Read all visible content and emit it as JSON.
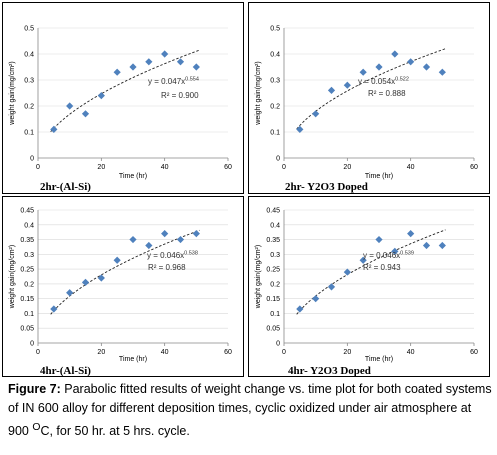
{
  "chart_data": [
    {
      "type": "scatter",
      "panel_label": "2hr-(Al-Si)",
      "xlabel": "Time (hr)",
      "ylabel": "weight gain(mg/cm²)",
      "xlim": [
        0,
        60
      ],
      "xticks": [
        "0",
        "20",
        "40",
        "60"
      ],
      "ylim": [
        0,
        0.5
      ],
      "yticks": [
        "0",
        "0.1",
        "0.2",
        "0.3",
        "0.4",
        "0.5"
      ],
      "grid": "horizontal",
      "points": [
        [
          5,
          0.11
        ],
        [
          10,
          0.2
        ],
        [
          15,
          0.17
        ],
        [
          20,
          0.24
        ],
        [
          25,
          0.33
        ],
        [
          30,
          0.35
        ],
        [
          35,
          0.37
        ],
        [
          40,
          0.4
        ],
        [
          45,
          0.37
        ],
        [
          50,
          0.35
        ]
      ],
      "trendline": {
        "type": "power",
        "a": 0.047,
        "b": 0.554
      },
      "equation": {
        "prefix": "y = 0.047x",
        "exponent": "0.554"
      },
      "r2": "R² = 0.900"
    },
    {
      "type": "scatter",
      "panel_label": "2hr- Y2O3 Doped",
      "xlabel": "Time (hr)",
      "ylabel": "weight gain(mg/cm²)",
      "xlim": [
        0,
        60
      ],
      "xticks": [
        "0",
        "20",
        "40",
        "60"
      ],
      "ylim": [
        0,
        0.5
      ],
      "yticks": [
        "0",
        "0.1",
        "0.2",
        "0.3",
        "0.4",
        "0.5"
      ],
      "grid": "horizontal",
      "points": [
        [
          5,
          0.11
        ],
        [
          10,
          0.17
        ],
        [
          15,
          0.26
        ],
        [
          20,
          0.28
        ],
        [
          25,
          0.33
        ],
        [
          30,
          0.35
        ],
        [
          35,
          0.4
        ],
        [
          40,
          0.37
        ],
        [
          45,
          0.35
        ],
        [
          50,
          0.33
        ]
      ],
      "trendline": {
        "type": "power",
        "a": 0.054,
        "b": 0.522
      },
      "equation": {
        "prefix": "y = 0.054x",
        "exponent": "0.522"
      },
      "r2": "R² = 0.888"
    },
    {
      "type": "scatter",
      "panel_label": "4hr-(Al-Si)",
      "xlabel": "Time (hr)",
      "ylabel": "weight gain(mg/cm²)",
      "xlim": [
        0,
        60
      ],
      "xticks": [
        "0",
        "20",
        "40",
        "60"
      ],
      "ylim": [
        0,
        0.45
      ],
      "yticks": [
        "0",
        "0.05",
        "0.1",
        "0.15",
        "0.2",
        "0.25",
        "0.3",
        "0.35",
        "0.4",
        "0.45"
      ],
      "grid": "horizontal",
      "points": [
        [
          5,
          0.115
        ],
        [
          10,
          0.17
        ],
        [
          15,
          0.205
        ],
        [
          20,
          0.22
        ],
        [
          25,
          0.28
        ],
        [
          30,
          0.35
        ],
        [
          35,
          0.33
        ],
        [
          40,
          0.37
        ],
        [
          45,
          0.35
        ],
        [
          50,
          0.37
        ]
      ],
      "trendline": {
        "type": "power",
        "a": 0.046,
        "b": 0.538
      },
      "equation": {
        "prefix": "y = 0.046x",
        "exponent": "0.538"
      },
      "r2": "R² = 0.968"
    },
    {
      "type": "scatter",
      "panel_label": "4hr- Y2O3 Doped",
      "xlabel": "Time (hr)",
      "ylabel": "weight gain(mg/cm²)",
      "xlim": [
        0,
        60
      ],
      "xticks": [
        "0",
        "20",
        "40",
        "60"
      ],
      "ylim": [
        0,
        0.45
      ],
      "yticks": [
        "0",
        "0.05",
        "0.1",
        "0.15",
        "0.2",
        "0.25",
        "0.3",
        "0.35",
        "0.4",
        "0.45"
      ],
      "grid": "horizontal",
      "points": [
        [
          5,
          0.115
        ],
        [
          10,
          0.15
        ],
        [
          15,
          0.19
        ],
        [
          20,
          0.24
        ],
        [
          25,
          0.28
        ],
        [
          30,
          0.35
        ],
        [
          35,
          0.31
        ],
        [
          40,
          0.37
        ],
        [
          45,
          0.33
        ],
        [
          50,
          0.33
        ]
      ],
      "trendline": {
        "type": "power",
        "a": 0.046,
        "b": 0.539
      },
      "equation": {
        "prefix": "y = 0.046x",
        "exponent": "0.539"
      },
      "r2": "R² = 0.943"
    }
  ],
  "caption": {
    "figure_label": "Figure 7:",
    "text_before_superscript": " Parabolic fitted results of weight change vs. time plot for both coated systems of IN 600 alloy for different deposition times, cyclic oxidized under air atmosphere at 900 ",
    "superscript": "O",
    "text_after_superscript": "C, for 50 hr. at 5 hrs. cycle."
  },
  "colors": {
    "marker": "#4f81bd",
    "trendline": "#222222",
    "grid": "#d9d9d9",
    "border": "#000000"
  }
}
